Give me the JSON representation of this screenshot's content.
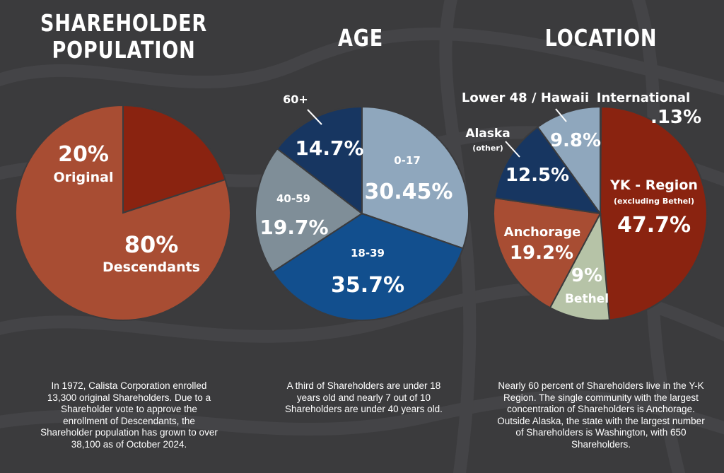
{
  "titles": {
    "population": "SHAREHOLDER POPULATION",
    "population_line1": "SHAREHOLDER",
    "population_line2": "POPULATION",
    "age": "AGE",
    "location": "LOCATION"
  },
  "captions": {
    "population": "In 1972, Calista Corporation enrolled 13,300 original Shareholders. Due to a Shareholder vote to approve the enrollment of Descendants, the Shareholder population has grown to over 38,100 as of October 2024.",
    "age": "A third of Shareholders are under 18 years old and nearly 7 out of 10 Shareholders are under 40 years old.",
    "location": "Nearly 60 percent of Shareholders live in the Y-K Region. The single community with the largest concentration of Shareholders is Anchorage. Outside Alaska, the state with the largest number of Shareholders is Washington, with 650 Shareholders."
  },
  "chart_data": [
    {
      "type": "pie",
      "title": "SHAREHOLDER POPULATION",
      "slices": [
        {
          "label": "Original",
          "value": 20,
          "display": "20%",
          "color": "#8a2310"
        },
        {
          "label": "Descendants",
          "value": 80,
          "display": "80%",
          "color": "#a84d33"
        }
      ]
    },
    {
      "type": "pie",
      "title": "AGE",
      "slices": [
        {
          "label": "0-17",
          "value": 30.45,
          "display": "30.45%",
          "color": "#8fa7bd"
        },
        {
          "label": "18-39",
          "value": 35.7,
          "display": "35.7%",
          "color": "#124f8e"
        },
        {
          "label": "40-59",
          "value": 19.7,
          "display": "19.7%",
          "color": "#7f8e98"
        },
        {
          "label": "60+",
          "value": 14.7,
          "display": "14.7%",
          "color": "#173661"
        }
      ]
    },
    {
      "type": "pie",
      "title": "LOCATION",
      "slices": [
        {
          "label": "International",
          "value": 0.13,
          "display": ".13%",
          "color": "#e0b53a"
        },
        {
          "label": "YK - Region",
          "sublabel": "(excluding Bethel)",
          "value": 47.7,
          "display": "47.7%",
          "color": "#8a2310"
        },
        {
          "label": "Bethel",
          "value": 9,
          "display": "9%",
          "color": "#b6c3a7"
        },
        {
          "label": "Anchorage",
          "value": 19.2,
          "display": "19.2%",
          "color": "#a84d33"
        },
        {
          "label": "Alaska",
          "sublabel": "(other)",
          "value": 12.5,
          "display": "12.5%",
          "color": "#173661"
        },
        {
          "label": "Lower 48 / Hawaii",
          "value": 9.8,
          "display": "9.8%",
          "color": "#8fa7bd"
        }
      ]
    }
  ]
}
